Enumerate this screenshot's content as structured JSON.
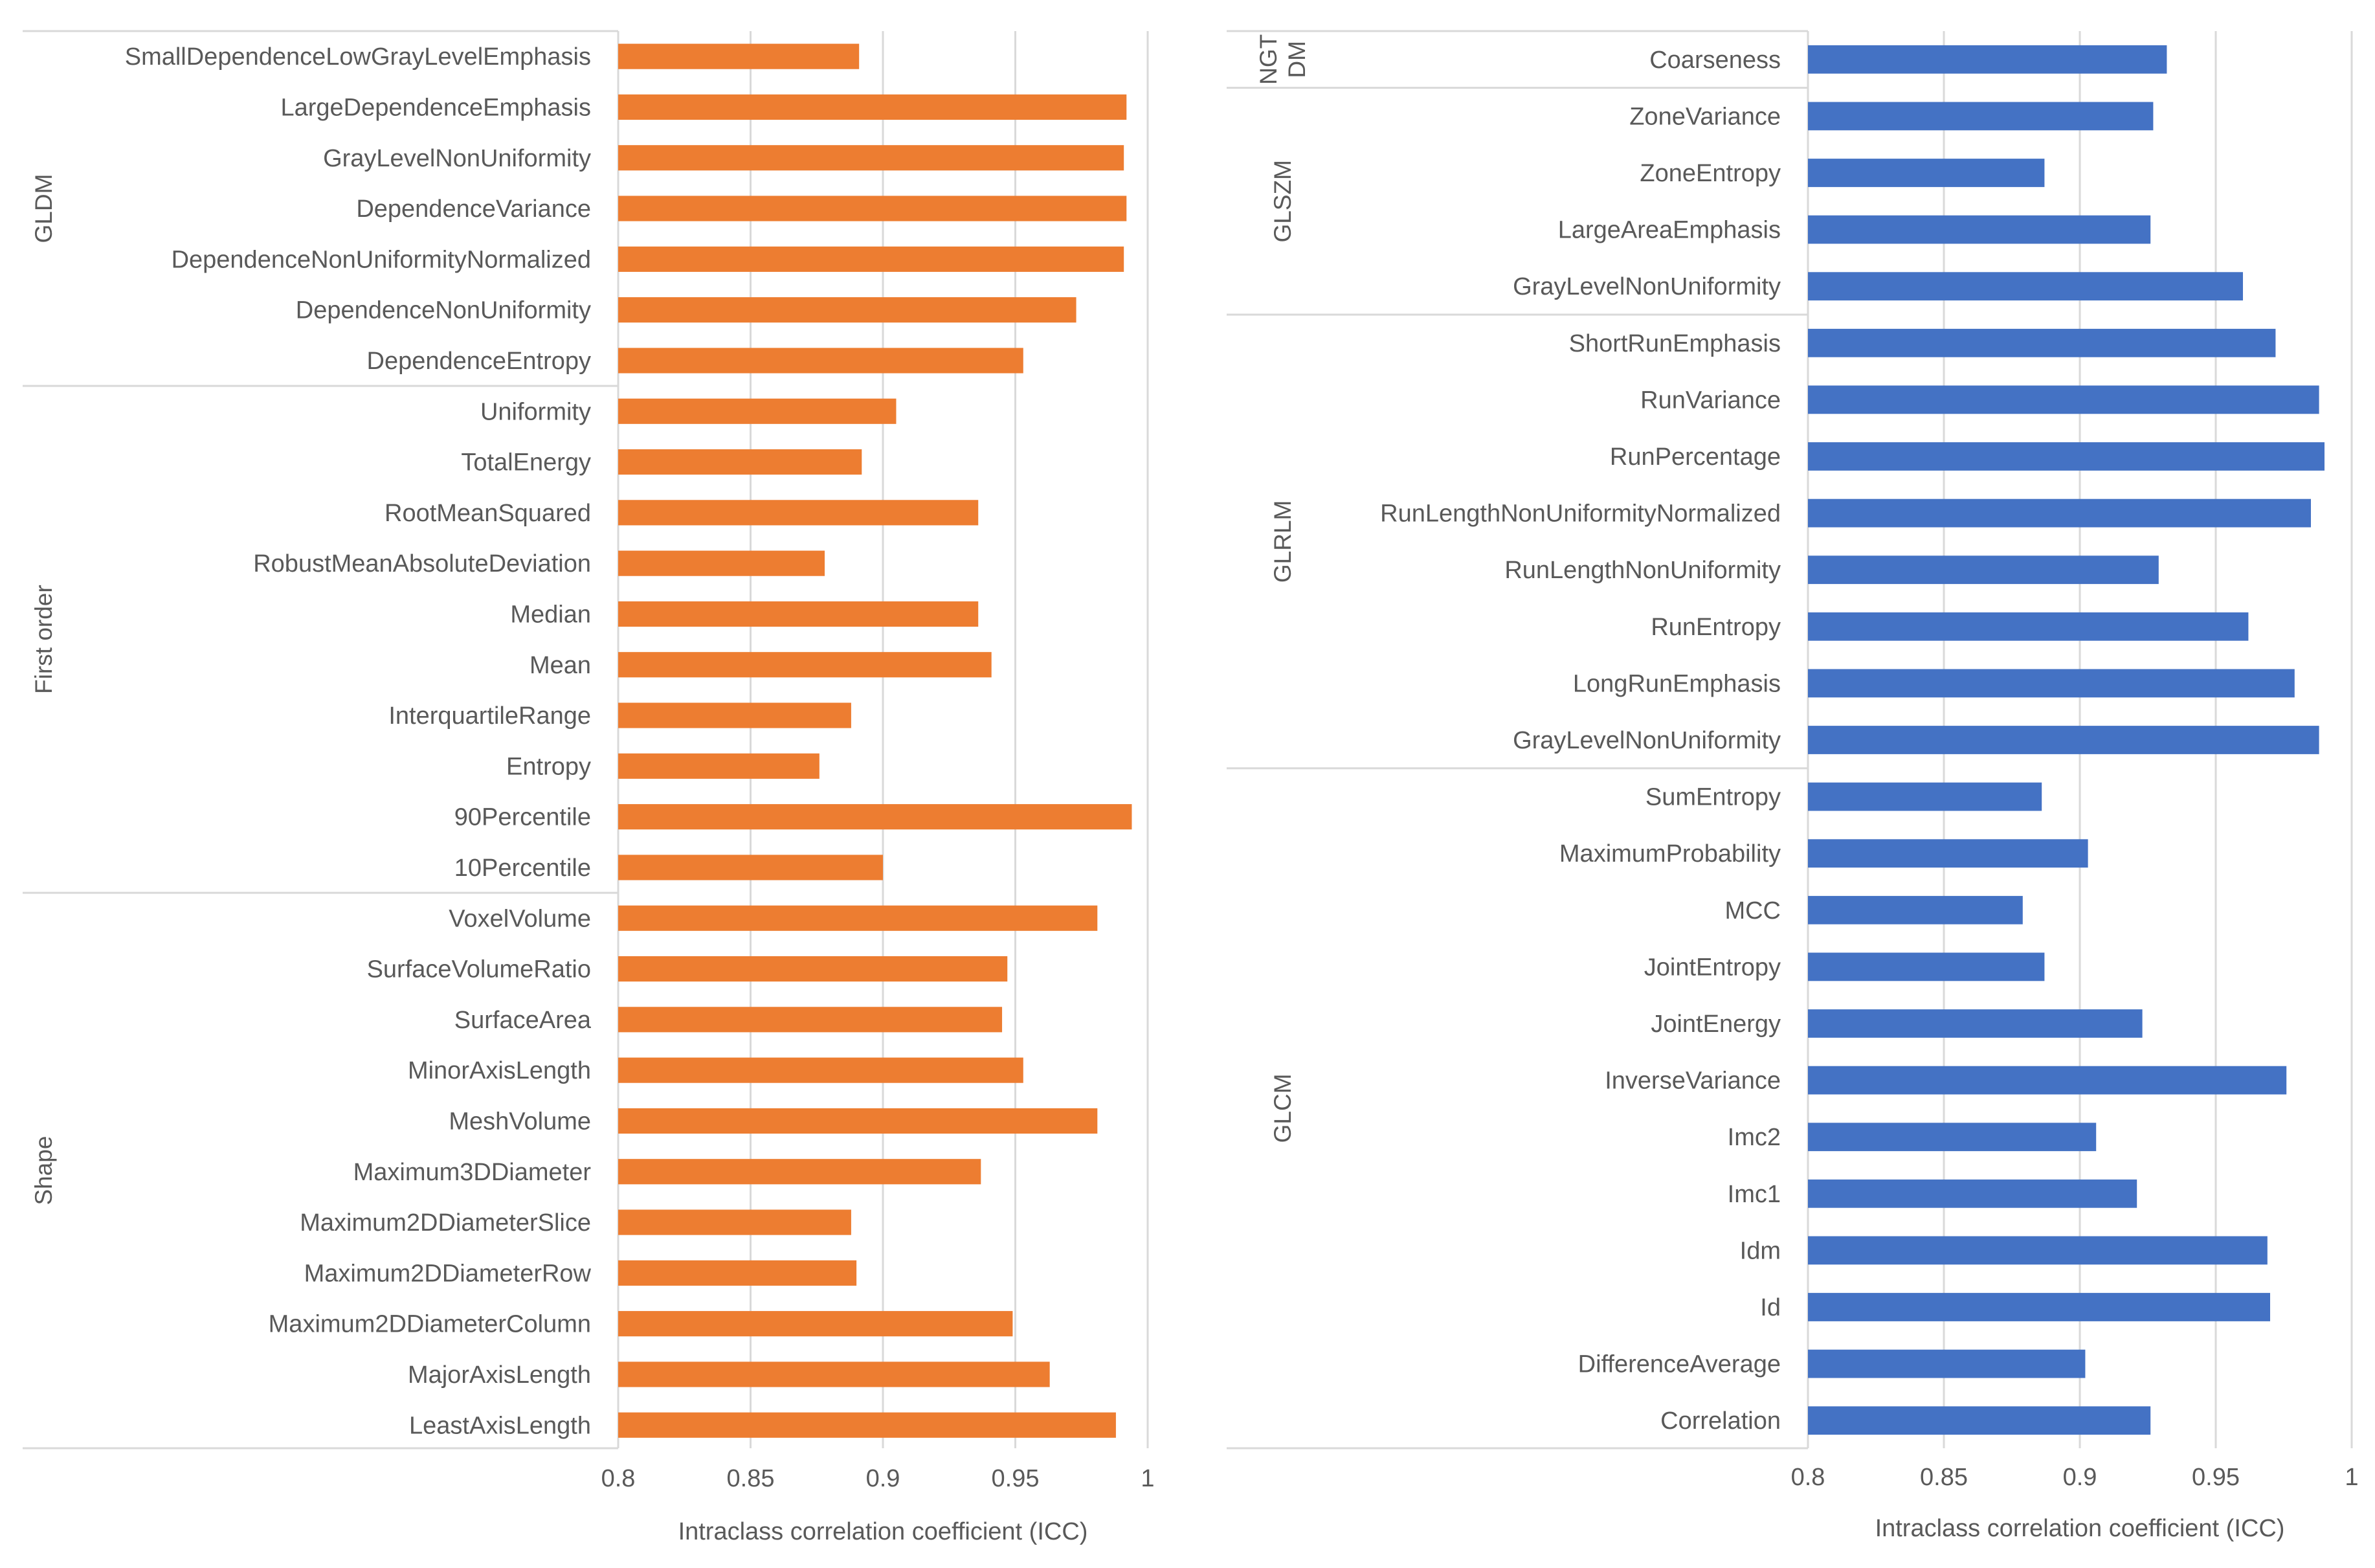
{
  "chart_data": [
    {
      "type": "bar",
      "orientation": "horizontal",
      "xlabel": "Intraclass correlation coefficient (ICC)",
      "xlim": [
        0.8,
        1.0
      ],
      "xticks": [
        "0.8",
        "0.85",
        "0.9",
        "0.95",
        "1"
      ],
      "grid": "vertical",
      "bar_color": "#ED7D31",
      "groups": [
        {
          "name": "GLDM",
          "categories": [
            "SmallDependenceLowGrayLevelEmphasis",
            "LargeDependenceEmphasis",
            "GrayLevelNonUniformity",
            "DependenceVariance",
            "DependenceNonUniformityNormalized",
            "DependenceNonUniformity",
            "DependenceEntropy"
          ],
          "values": [
            0.891,
            0.992,
            0.991,
            0.992,
            0.991,
            0.973,
            0.953
          ]
        },
        {
          "name": "First order",
          "categories": [
            "Uniformity",
            "TotalEnergy",
            "RootMeanSquared",
            "RobustMeanAbsoluteDeviation",
            "Median",
            "Mean",
            "InterquartileRange",
            "Entropy",
            "90Percentile",
            "10Percentile"
          ],
          "values": [
            0.905,
            0.892,
            0.936,
            0.878,
            0.936,
            0.941,
            0.888,
            0.876,
            0.994,
            0.9
          ]
        },
        {
          "name": "Shape",
          "categories": [
            "VoxelVolume",
            "SurfaceVolumeRatio",
            "SurfaceArea",
            "MinorAxisLength",
            "MeshVolume",
            "Maximum3DDiameter",
            "Maximum2DDiameterSlice",
            "Maximum2DDiameterRow",
            "Maximum2DDiameterColumn",
            "MajorAxisLength",
            "LeastAxisLength"
          ],
          "values": [
            0.981,
            0.947,
            0.945,
            0.953,
            0.981,
            0.937,
            0.888,
            0.89,
            0.949,
            0.963,
            0.988
          ]
        }
      ]
    },
    {
      "type": "bar",
      "orientation": "horizontal",
      "xlabel": "Intraclass correlation coefficient (ICC)",
      "xlim": [
        0.8,
        1.0
      ],
      "xticks": [
        "0.8",
        "0.85",
        "0.9",
        "0.95",
        "1"
      ],
      "grid": "vertical",
      "bar_color": "#4472C4",
      "groups": [
        {
          "name": "NGT\nDM",
          "categories": [
            "Coarseness"
          ],
          "values": [
            0.932
          ]
        },
        {
          "name": "GLSZM",
          "categories": [
            "ZoneVariance",
            "ZoneEntropy",
            "LargeAreaEmphasis",
            "GrayLevelNonUniformity"
          ],
          "values": [
            0.927,
            0.887,
            0.926,
            0.96
          ]
        },
        {
          "name": "GLRLM",
          "categories": [
            "ShortRunEmphasis",
            "RunVariance",
            "RunPercentage",
            "RunLengthNonUniformityNormalized",
            "RunLengthNonUniformity",
            "RunEntropy",
            "LongRunEmphasis",
            "GrayLevelNonUniformity"
          ],
          "values": [
            0.972,
            0.988,
            0.99,
            0.985,
            0.929,
            0.962,
            0.979,
            0.988
          ]
        },
        {
          "name": "GLCM",
          "categories": [
            "SumEntropy",
            "MaximumProbability",
            "MCC",
            "JointEntropy",
            "JointEnergy",
            "InverseVariance",
            "Imc2",
            "Imc1",
            "Idm",
            "Id",
            "DifferenceAverage",
            "Correlation"
          ],
          "values": [
            0.886,
            0.903,
            0.879,
            0.887,
            0.923,
            0.976,
            0.906,
            0.921,
            0.969,
            0.97,
            0.902,
            0.926
          ]
        }
      ]
    }
  ]
}
